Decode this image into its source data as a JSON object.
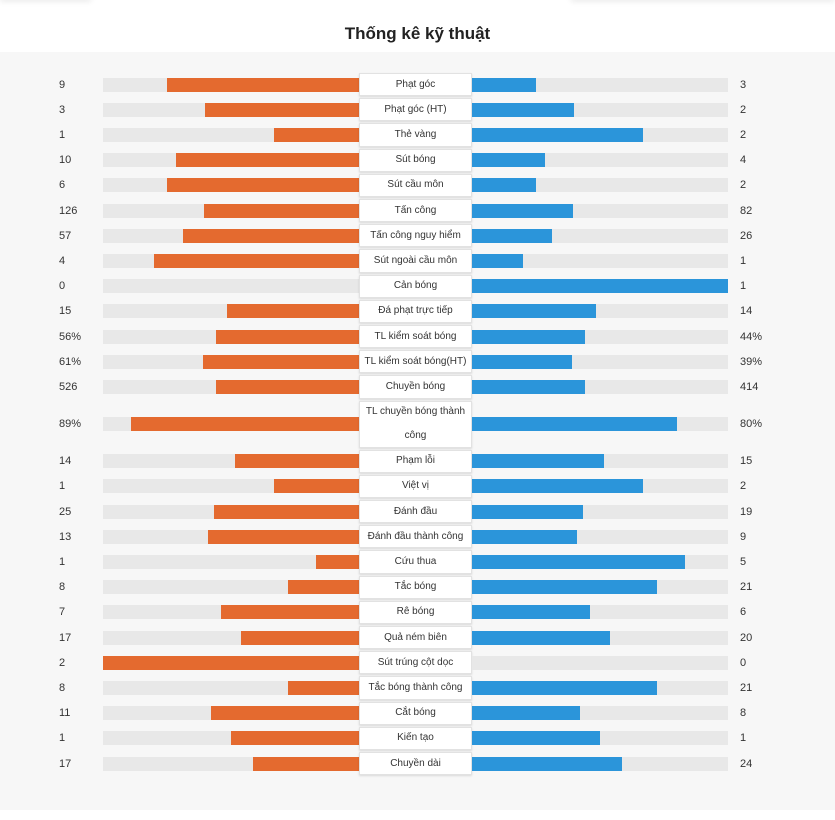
{
  "title": "Thống kê kỹ thuật",
  "colors": {
    "home": "#e46a2f",
    "away": "#2b95da",
    "track": "#e8e8e8",
    "panel": "#f7f7f7"
  },
  "stats": [
    {
      "label": "Phạt góc",
      "home": "9",
      "away": "3",
      "home_frac": 0.75,
      "away_frac": 0.25
    },
    {
      "label": "Phạt góc (HT)",
      "home": "3",
      "away": "2",
      "home_frac": 0.6,
      "away_frac": 0.4
    },
    {
      "label": "Thẻ vàng",
      "home": "1",
      "away": "2",
      "home_frac": 0.333,
      "away_frac": 0.667
    },
    {
      "label": "Sút bóng",
      "home": "10",
      "away": "4",
      "home_frac": 0.714,
      "away_frac": 0.286
    },
    {
      "label": "Sút cầu môn",
      "home": "6",
      "away": "2",
      "home_frac": 0.75,
      "away_frac": 0.25
    },
    {
      "label": "Tấn công",
      "home": "126",
      "away": "82",
      "home_frac": 0.606,
      "away_frac": 0.394
    },
    {
      "label": "Tấn công nguy hiểm",
      "home": "57",
      "away": "26",
      "home_frac": 0.687,
      "away_frac": 0.313
    },
    {
      "label": "Sút ngoài cầu môn",
      "home": "4",
      "away": "1",
      "home_frac": 0.8,
      "away_frac": 0.2
    },
    {
      "label": "Cản bóng",
      "home": "0",
      "away": "1",
      "home_frac": 0.0,
      "away_frac": 1.0
    },
    {
      "label": "Đá phạt trực tiếp",
      "home": "15",
      "away": "14",
      "home_frac": 0.517,
      "away_frac": 0.483
    },
    {
      "label": "TL kiểm soát bóng",
      "home": "56%",
      "away": "44%",
      "home_frac": 0.56,
      "away_frac": 0.44
    },
    {
      "label": "TL kiểm soát bóng(HT)",
      "home": "61%",
      "away": "39%",
      "home_frac": 0.61,
      "away_frac": 0.39
    },
    {
      "label": "Chuyền bóng",
      "home": "526",
      "away": "414",
      "home_frac": 0.56,
      "away_frac": 0.44
    },
    {
      "label": "TL chuyền bóng thành công",
      "home": "89%",
      "away": "80%",
      "home_frac": 0.89,
      "away_frac": 0.8,
      "tall": true
    },
    {
      "label": "Phạm lỗi",
      "home": "14",
      "away": "15",
      "home_frac": 0.483,
      "away_frac": 0.517
    },
    {
      "label": "Việt vị",
      "home": "1",
      "away": "2",
      "home_frac": 0.333,
      "away_frac": 0.667
    },
    {
      "label": "Đánh đầu",
      "home": "25",
      "away": "19",
      "home_frac": 0.568,
      "away_frac": 0.432
    },
    {
      "label": "Đánh đầu thành công",
      "home": "13",
      "away": "9",
      "home_frac": 0.591,
      "away_frac": 0.409
    },
    {
      "label": "Cứu thua",
      "home": "1",
      "away": "5",
      "home_frac": 0.167,
      "away_frac": 0.833
    },
    {
      "label": "Tắc bóng",
      "home": "8",
      "away": "21",
      "home_frac": 0.276,
      "away_frac": 0.724
    },
    {
      "label": "Rê bóng",
      "home": "7",
      "away": "6",
      "home_frac": 0.538,
      "away_frac": 0.462
    },
    {
      "label": "Quả ném biên",
      "home": "17",
      "away": "20",
      "home_frac": 0.459,
      "away_frac": 0.541
    },
    {
      "label": "Sút trúng cột dọc",
      "home": "2",
      "away": "0",
      "home_frac": 1.0,
      "away_frac": 0.0
    },
    {
      "label": "Tắc bóng thành công",
      "home": "8",
      "away": "21",
      "home_frac": 0.276,
      "away_frac": 0.724
    },
    {
      "label": "Cắt bóng",
      "home": "11",
      "away": "8",
      "home_frac": 0.579,
      "away_frac": 0.421
    },
    {
      "label": "Kiến tạo",
      "home": "1",
      "away": "1",
      "home_frac": 0.5,
      "away_frac": 0.5
    },
    {
      "label": "Chuyền dài",
      "home": "17",
      "away": "24",
      "home_frac": 0.415,
      "away_frac": 0.585
    }
  ]
}
